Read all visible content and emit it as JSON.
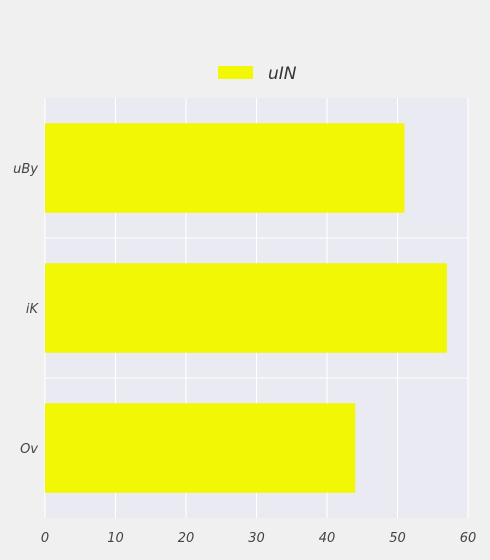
{
  "chart_data": {
    "type": "bar",
    "orientation": "horizontal",
    "categories": [
      "uBy",
      "iK",
      "Ov"
    ],
    "series": [
      {
        "name": "uIN",
        "values": [
          51,
          57,
          44
        ],
        "color": "#f2f705"
      }
    ],
    "title": "",
    "xlabel": "",
    "ylabel": "",
    "xlim": [
      0,
      60
    ],
    "xticks": [
      0,
      10,
      20,
      30,
      40,
      50,
      60
    ],
    "grid": true,
    "legend_position": "top-center",
    "colors": {
      "plot_background": "#eaeaf2",
      "page_background": "#f0f0f0",
      "grid": "#ffffff"
    }
  }
}
